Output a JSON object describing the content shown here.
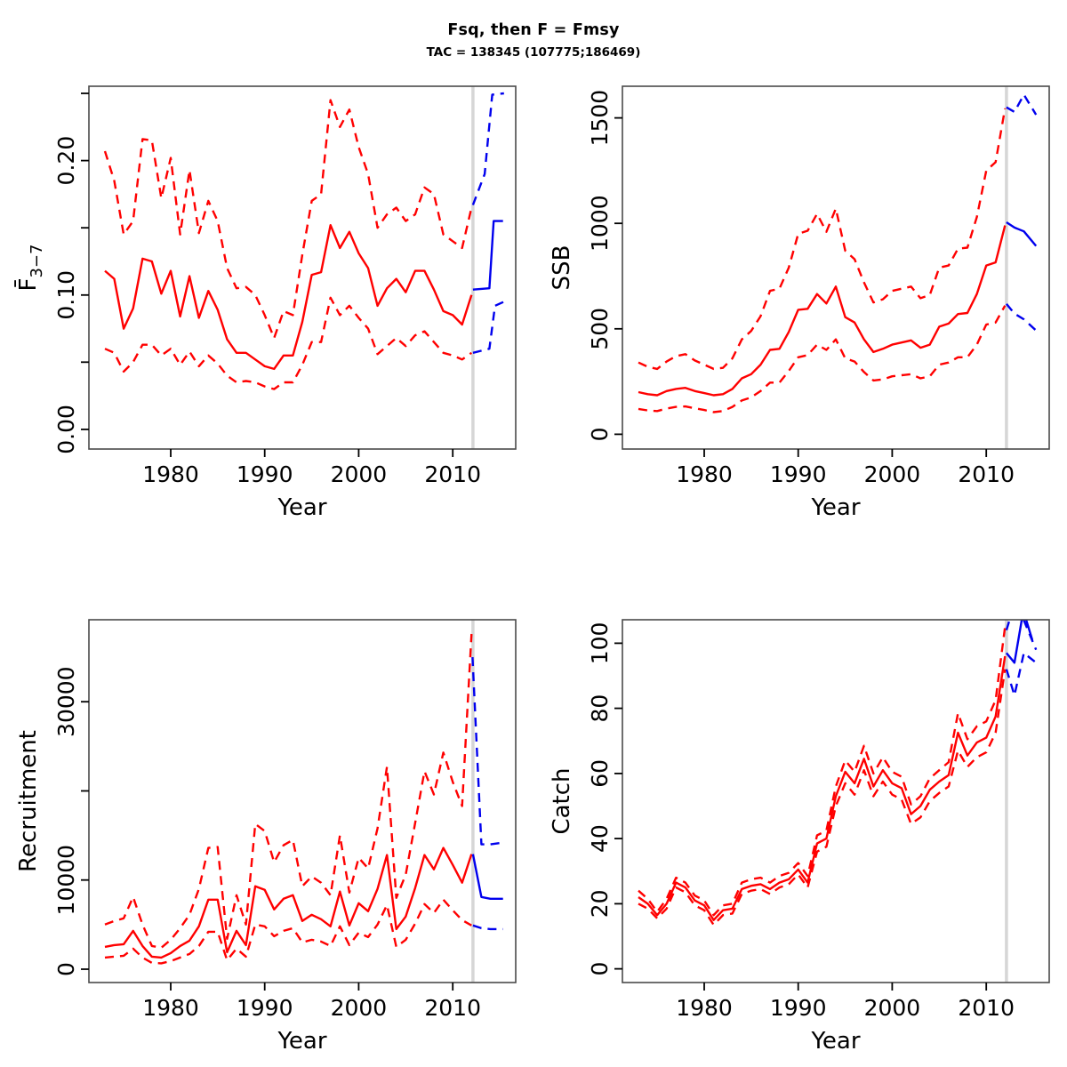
{
  "title": "Fsq, then F = Fmsy",
  "subtitle": "TAC = 138345 (107775;186469)",
  "colors": {
    "historical": "#ff0000",
    "projection": "#0000ee",
    "vline": "#d6d6d6",
    "box": "#4a4a4a",
    "tick": "#000000"
  },
  "chart_data": [
    {
      "name": "fbar",
      "type": "line",
      "xlabel": "Year",
      "ylabel": {
        "main": "F̄",
        "sub": "3−7"
      },
      "xlim": [
        1971.3,
        2016.7
      ],
      "ylim": [
        -0.0146,
        0.2553
      ],
      "xticks": [
        1980,
        1990,
        2000,
        2010
      ],
      "yticks": [
        {
          "v": 0.0,
          "label": "0.00"
        },
        {
          "v": 0.05,
          "label": ""
        },
        {
          "v": 0.1,
          "label": "0.10"
        },
        {
          "v": 0.15,
          "label": ""
        },
        {
          "v": 0.2,
          "label": "0.20"
        },
        {
          "v": 0.25,
          "label": ""
        }
      ],
      "vline": 2012.15,
      "years": [
        1973,
        1974,
        1975,
        1976,
        1977,
        1978,
        1979,
        1980,
        1981,
        1982,
        1983,
        1984,
        1985,
        1986,
        1987,
        1988,
        1989,
        1990,
        1991,
        1992,
        1993,
        1994,
        1995,
        1996,
        1997,
        1998,
        1999,
        2000,
        2001,
        2002,
        2003,
        2004,
        2005,
        2006,
        2007,
        2008,
        2009,
        2010,
        2011,
        2012
      ],
      "series": [
        {
          "name": "median-historical",
          "color": "historical",
          "style": "solid",
          "y": [
            0.118,
            0.112,
            0.075,
            0.09,
            0.127,
            0.125,
            0.101,
            0.118,
            0.084,
            0.114,
            0.083,
            0.103,
            0.089,
            0.067,
            0.057,
            0.057,
            0.052,
            0.047,
            0.045,
            0.055,
            0.055,
            0.08,
            0.115,
            0.117,
            0.152,
            0.135,
            0.147,
            0.131,
            0.12,
            0.092,
            0.105,
            0.112,
            0.102,
            0.118,
            0.118,
            0.104,
            0.088,
            0.085,
            0.078,
            0.1
          ]
        },
        {
          "name": "ci-upper-historical",
          "color": "historical",
          "style": "dashed",
          "y": [
            0.207,
            0.185,
            0.145,
            0.155,
            0.216,
            0.215,
            0.172,
            0.202,
            0.145,
            0.193,
            0.146,
            0.17,
            0.155,
            0.12,
            0.105,
            0.106,
            0.1,
            0.085,
            0.068,
            0.088,
            0.085,
            0.13,
            0.17,
            0.175,
            0.245,
            0.225,
            0.238,
            0.21,
            0.19,
            0.15,
            0.16,
            0.165,
            0.155,
            0.16,
            0.18,
            0.175,
            0.145,
            0.14,
            0.135,
            0.165
          ]
        },
        {
          "name": "ci-lower-historical",
          "color": "historical",
          "style": "dashed",
          "y": [
            0.06,
            0.057,
            0.043,
            0.05,
            0.063,
            0.063,
            0.055,
            0.06,
            0.048,
            0.058,
            0.047,
            0.055,
            0.049,
            0.04,
            0.035,
            0.036,
            0.035,
            0.032,
            0.03,
            0.035,
            0.035,
            0.048,
            0.065,
            0.065,
            0.098,
            0.085,
            0.092,
            0.083,
            0.075,
            0.056,
            0.062,
            0.068,
            0.062,
            0.07,
            0.073,
            0.065,
            0.057,
            0.055,
            0.052,
            0.057
          ]
        },
        {
          "name": "median-projection",
          "color": "projection",
          "style": "solid",
          "x": [
            2012.15,
            2013.9,
            2014.35,
            2015.35
          ],
          "y": [
            0.104,
            0.105,
            0.155,
            0.155
          ]
        },
        {
          "name": "ci-upper-projection",
          "color": "projection",
          "style": "dashed",
          "x": [
            2012.15,
            2013.4,
            2014.2,
            2015.45
          ],
          "y": [
            0.167,
            0.19,
            0.249,
            0.25
          ]
        },
        {
          "name": "ci-lower-projection",
          "color": "projection",
          "style": "dashed",
          "x": [
            2012.15,
            2013.9,
            2014.5,
            2015.45
          ],
          "y": [
            0.057,
            0.06,
            0.092,
            0.095
          ]
        }
      ]
    },
    {
      "name": "ssb",
      "type": "line",
      "xlabel": "Year",
      "ylabel": "SSB",
      "xlim": [
        1971.3,
        2016.7
      ],
      "ylim": [
        -70,
        1650
      ],
      "xticks": [
        1980,
        1990,
        2000,
        2010
      ],
      "yticks": [
        {
          "v": 0,
          "label": "0"
        },
        {
          "v": 500,
          "label": "500"
        },
        {
          "v": 1000,
          "label": "1000"
        },
        {
          "v": 1500,
          "label": "1500"
        }
      ],
      "vline": 2012.15,
      "years": [
        1973,
        1974,
        1975,
        1976,
        1977,
        1978,
        1979,
        1980,
        1981,
        1982,
        1983,
        1984,
        1985,
        1986,
        1987,
        1988,
        1989,
        1990,
        1991,
        1992,
        1993,
        1994,
        1995,
        1996,
        1997,
        1998,
        1999,
        2000,
        2001,
        2002,
        2003,
        2004,
        2005,
        2006,
        2007,
        2008,
        2009,
        2010,
        2011,
        2012
      ],
      "series": [
        {
          "name": "median-historical",
          "color": "historical",
          "style": "solid",
          "y": [
            200,
            190,
            185,
            205,
            215,
            220,
            205,
            195,
            185,
            190,
            215,
            265,
            285,
            330,
            400,
            405,
            485,
            590,
            595,
            665,
            620,
            700,
            555,
            530,
            450,
            390,
            405,
            425,
            435,
            445,
            410,
            425,
            510,
            525,
            570,
            575,
            665,
            800,
            815,
            990
          ]
        },
        {
          "name": "ci-upper-historical",
          "color": "historical",
          "style": "dashed",
          "y": [
            340,
            320,
            310,
            345,
            370,
            380,
            350,
            330,
            310,
            315,
            360,
            450,
            490,
            560,
            680,
            690,
            790,
            950,
            965,
            1045,
            960,
            1070,
            870,
            830,
            720,
            625,
            640,
            680,
            690,
            700,
            645,
            660,
            790,
            800,
            880,
            885,
            1030,
            1250,
            1290,
            1545
          ]
        },
        {
          "name": "ci-lower-historical",
          "color": "historical",
          "style": "dashed",
          "y": [
            120,
            113,
            110,
            122,
            130,
            132,
            123,
            115,
            105,
            110,
            130,
            160,
            175,
            205,
            245,
            245,
            300,
            365,
            375,
            425,
            400,
            450,
            360,
            345,
            295,
            255,
            260,
            275,
            280,
            285,
            265,
            275,
            330,
            340,
            365,
            365,
            425,
            520,
            530,
            610
          ]
        },
        {
          "name": "median-projection",
          "color": "projection",
          "style": "solid",
          "x": [
            2012.15,
            2013.0,
            2014.0,
            2015.3
          ],
          "y": [
            1005,
            980,
            962,
            893
          ]
        },
        {
          "name": "ci-upper-projection",
          "color": "projection",
          "style": "dashed",
          "x": [
            2012.15,
            2013.0,
            2014.0,
            2015.3
          ],
          "y": [
            1550,
            1528,
            1610,
            1515
          ]
        },
        {
          "name": "ci-lower-projection",
          "color": "projection",
          "style": "dashed",
          "x": [
            2012.15,
            2013.0,
            2014.0,
            2015.3
          ],
          "y": [
            618,
            572,
            545,
            492
          ]
        }
      ]
    },
    {
      "name": "rec",
      "type": "line",
      "xlabel": "Year",
      "ylabel": "Recruitment",
      "xlim": [
        1971.3,
        2016.7
      ],
      "ylim": [
        -1500,
        39200
      ],
      "xticks": [
        1980,
        1990,
        2000,
        2010
      ],
      "yticks": [
        {
          "v": 0,
          "label": "0"
        },
        {
          "v": 10000,
          "label": "10000"
        },
        {
          "v": 20000,
          "label": ""
        },
        {
          "v": 30000,
          "label": "30000"
        }
      ],
      "vline": 2012.15,
      "years": [
        1973,
        1974,
        1975,
        1976,
        1977,
        1978,
        1979,
        1980,
        1981,
        1982,
        1983,
        1984,
        1985,
        1986,
        1987,
        1988,
        1989,
        1990,
        1991,
        1992,
        1993,
        1994,
        1995,
        1996,
        1997,
        1998,
        1999,
        2000,
        2001,
        2002,
        2003,
        2004,
        2005,
        2006,
        2007,
        2008,
        2009,
        2010,
        2011,
        2012
      ],
      "series": [
        {
          "name": "median-historical",
          "color": "historical",
          "style": "solid",
          "y": [
            2500,
            2700,
            2800,
            4300,
            2600,
            1400,
            1300,
            1800,
            2600,
            3200,
            4800,
            7800,
            7800,
            1900,
            4300,
            2700,
            9300,
            8900,
            6700,
            7900,
            8300,
            5400,
            6100,
            5600,
            4800,
            8700,
            4900,
            7400,
            6500,
            9000,
            12800,
            4500,
            5900,
            9100,
            12800,
            11200,
            13600,
            11700,
            9700,
            12900
          ]
        },
        {
          "name": "ci-upper-historical",
          "color": "historical",
          "style": "dashed",
          "y": [
            5000,
            5400,
            5700,
            8100,
            5000,
            2600,
            2400,
            3300,
            4600,
            6100,
            9000,
            13600,
            13700,
            3400,
            8300,
            5000,
            16300,
            15500,
            12000,
            13900,
            14500,
            9300,
            10400,
            9700,
            8300,
            15000,
            8600,
            12500,
            11300,
            15800,
            22700,
            8000,
            10600,
            16400,
            22200,
            19600,
            24300,
            21000,
            18300,
            37600
          ]
        },
        {
          "name": "ci-lower-historical",
          "color": "historical",
          "style": "dashed",
          "y": [
            1300,
            1400,
            1500,
            2300,
            1300,
            700,
            650,
            900,
            1300,
            1700,
            2600,
            4200,
            4200,
            1000,
            2300,
            1400,
            5000,
            4800,
            3700,
            4300,
            4600,
            3000,
            3300,
            3100,
            2600,
            4800,
            2700,
            4100,
            3600,
            5000,
            7200,
            2500,
            3300,
            5100,
            7300,
            6300,
            7800,
            6600,
            5500,
            4900
          ]
        },
        {
          "name": "median-projection",
          "color": "projection",
          "style": "solid",
          "x": [
            2012.15,
            2013.05,
            2014.0,
            2015.35
          ],
          "y": [
            12900,
            8100,
            7900,
            7900
          ]
        },
        {
          "name": "ci-upper-projection",
          "color": "projection",
          "style": "dashed",
          "x": [
            2012.1,
            2013.05,
            2014.0,
            2015.35
          ],
          "y": [
            35000,
            14000,
            14000,
            14200
          ]
        },
        {
          "name": "ci-lower-projection",
          "color": "projection",
          "style": "dashed",
          "x": [
            2012.15,
            2013.05,
            2014.0,
            2015.35
          ],
          "y": [
            4900,
            4600,
            4500,
            4500
          ]
        }
      ]
    },
    {
      "name": "catch",
      "type": "line",
      "xlabel": "Year",
      "ylabel": "Catch",
      "xlim": [
        1971.3,
        2016.7
      ],
      "ylim": [
        -4.2,
        107.2
      ],
      "xticks": [
        1980,
        1990,
        2000,
        2010
      ],
      "yticks": [
        {
          "v": 0,
          "label": "0"
        },
        {
          "v": 20,
          "label": "20"
        },
        {
          "v": 40,
          "label": "40"
        },
        {
          "v": 60,
          "label": "60"
        },
        {
          "v": 80,
          "label": "80"
        },
        {
          "v": 100,
          "label": "100"
        }
      ],
      "vline": 2012.15,
      "years": [
        1973,
        1974,
        1975,
        1976,
        1977,
        1978,
        1979,
        1980,
        1981,
        1982,
        1983,
        1984,
        1985,
        1986,
        1987,
        1988,
        1989,
        1990,
        1991,
        1992,
        1993,
        1994,
        1995,
        1996,
        1997,
        1998,
        1999,
        2000,
        2001,
        2002,
        2003,
        2004,
        2005,
        2006,
        2007,
        2008,
        2009,
        2010,
        2011,
        2012
      ],
      "series": [
        {
          "name": "median-historical",
          "color": "historical",
          "style": "solid",
          "y": [
            22,
            20,
            16.5,
            20,
            26.5,
            25,
            21,
            19.5,
            15,
            18,
            18.5,
            24.5,
            25.5,
            26,
            24.5,
            26.5,
            27.5,
            30.5,
            26.5,
            38.5,
            40,
            53,
            60.5,
            57,
            64.5,
            56,
            61,
            57,
            55.5,
            47.5,
            50,
            55,
            57.5,
            59.5,
            72.5,
            65.5,
            69.5,
            71,
            77.5,
            96
          ]
        },
        {
          "name": "ci-upper-historical",
          "color": "historical",
          "style": "dashed",
          "y": [
            24,
            21.5,
            17.5,
            21.5,
            28,
            26.5,
            22.5,
            21,
            16.5,
            19.5,
            20,
            26.5,
            27.5,
            28,
            26.5,
            28.5,
            29.5,
            32.5,
            28.5,
            41,
            42.5,
            56,
            64,
            60.5,
            68.5,
            60,
            65,
            60.5,
            59,
            50.5,
            53,
            58.5,
            61,
            63.5,
            78.5,
            70.5,
            74.5,
            76,
            82.5,
            105
          ]
        },
        {
          "name": "ci-lower-historical",
          "color": "historical",
          "style": "dashed",
          "y": [
            20,
            18.5,
            15.5,
            18.5,
            25,
            23.5,
            19.5,
            18,
            13.5,
            16.5,
            17,
            23,
            24,
            24.5,
            23,
            25,
            26,
            29,
            25,
            36,
            37.5,
            50,
            57,
            53.5,
            61,
            53,
            57.5,
            53.5,
            52,
            44.5,
            46.5,
            51.5,
            54,
            56,
            67,
            62,
            65,
            66.5,
            72.5,
            92
          ]
        },
        {
          "name": "median-projection",
          "color": "projection",
          "style": "solid",
          "x": [
            2012.15,
            2013.0,
            2013.95,
            2014.9
          ],
          "y": [
            97,
            94,
            110,
            101
          ]
        },
        {
          "name": "ci-upper-projection",
          "color": "projection",
          "style": "dashed",
          "x": [
            2012.15,
            2013.0,
            2014.0,
            2015.3
          ],
          "y": [
            104,
            112,
            107,
            98
          ]
        },
        {
          "name": "ci-lower-projection",
          "color": "projection",
          "style": "dashed",
          "x": [
            2012.15,
            2013.0,
            2014.0,
            2015.3
          ],
          "y": [
            92,
            84,
            97,
            94
          ]
        }
      ]
    }
  ]
}
